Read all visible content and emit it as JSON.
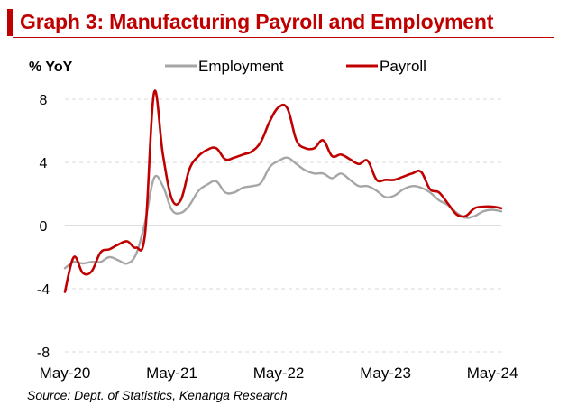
{
  "title": "Graph 3: Manufacturing Payroll and Employment",
  "source": "Source:  Dept. of Statistics, Kenanga Research",
  "colors": {
    "title": "#c00000",
    "employment": "#a6a6a6",
    "payroll": "#c00000"
  },
  "chart_data": {
    "type": "line",
    "ylabel": "% YoY",
    "ylim": [
      -8,
      8
    ],
    "yticks": [
      "8",
      "4",
      "0",
      "-4",
      "-8"
    ],
    "ytick_values": [
      8,
      4,
      0,
      -4,
      -8
    ],
    "xlim": [
      "2020-05",
      "2024-06"
    ],
    "xticks": [
      "May-20",
      "May-21",
      "May-22",
      "May-23",
      "May-24"
    ],
    "xtick_dates": [
      "2020-05",
      "2021-05",
      "2022-05",
      "2023-05",
      "2024-05"
    ],
    "grid": "horizontal dashed",
    "legend_position": "top",
    "x": [
      "2020-05",
      "2020-06",
      "2020-07",
      "2020-08",
      "2020-09",
      "2020-10",
      "2020-11",
      "2020-12",
      "2021-01",
      "2021-02",
      "2021-03",
      "2021-04",
      "2021-05",
      "2021-06",
      "2021-07",
      "2021-08",
      "2021-09",
      "2021-10",
      "2021-11",
      "2021-12",
      "2022-01",
      "2022-02",
      "2022-03",
      "2022-04",
      "2022-05",
      "2022-06",
      "2022-07",
      "2022-08",
      "2022-09",
      "2022-10",
      "2022-11",
      "2022-12",
      "2023-01",
      "2023-02",
      "2023-03",
      "2023-04",
      "2023-05",
      "2023-06",
      "2023-07",
      "2023-08",
      "2023-09",
      "2023-10",
      "2023-11",
      "2023-12",
      "2024-01",
      "2024-02",
      "2024-03",
      "2024-04",
      "2024-05",
      "2024-06"
    ],
    "series": [
      {
        "name": "Employment",
        "values": [
          -2.7,
          -2.3,
          -2.4,
          -2.3,
          -2.3,
          -2.0,
          -2.2,
          -2.4,
          -1.8,
          0.2,
          3.0,
          2.5,
          1.0,
          0.8,
          1.3,
          2.2,
          2.6,
          2.8,
          2.1,
          2.1,
          2.4,
          2.5,
          2.7,
          3.7,
          4.1,
          4.3,
          3.9,
          3.5,
          3.3,
          3.3,
          3.0,
          3.3,
          2.9,
          2.5,
          2.5,
          2.2,
          1.8,
          1.9,
          2.3,
          2.5,
          2.4,
          2.1,
          1.6,
          1.3,
          0.8,
          0.5,
          0.6,
          0.9,
          1.0,
          0.9
        ]
      },
      {
        "name": "Payroll",
        "values": [
          -4.2,
          -2.0,
          -3.0,
          -2.9,
          -1.7,
          -1.5,
          -1.2,
          -1.0,
          -1.4,
          -0.5,
          8.4,
          4.5,
          1.7,
          1.6,
          3.6,
          4.4,
          4.8,
          4.9,
          4.2,
          4.3,
          4.5,
          4.7,
          5.3,
          6.6,
          7.5,
          7.4,
          5.4,
          4.9,
          4.9,
          5.4,
          4.4,
          4.5,
          4.2,
          3.9,
          4.1,
          2.9,
          2.9,
          2.9,
          3.1,
          3.3,
          3.4,
          2.3,
          2.1,
          1.4,
          0.7,
          0.6,
          1.1,
          1.2,
          1.2,
          1.1
        ]
      }
    ]
  }
}
